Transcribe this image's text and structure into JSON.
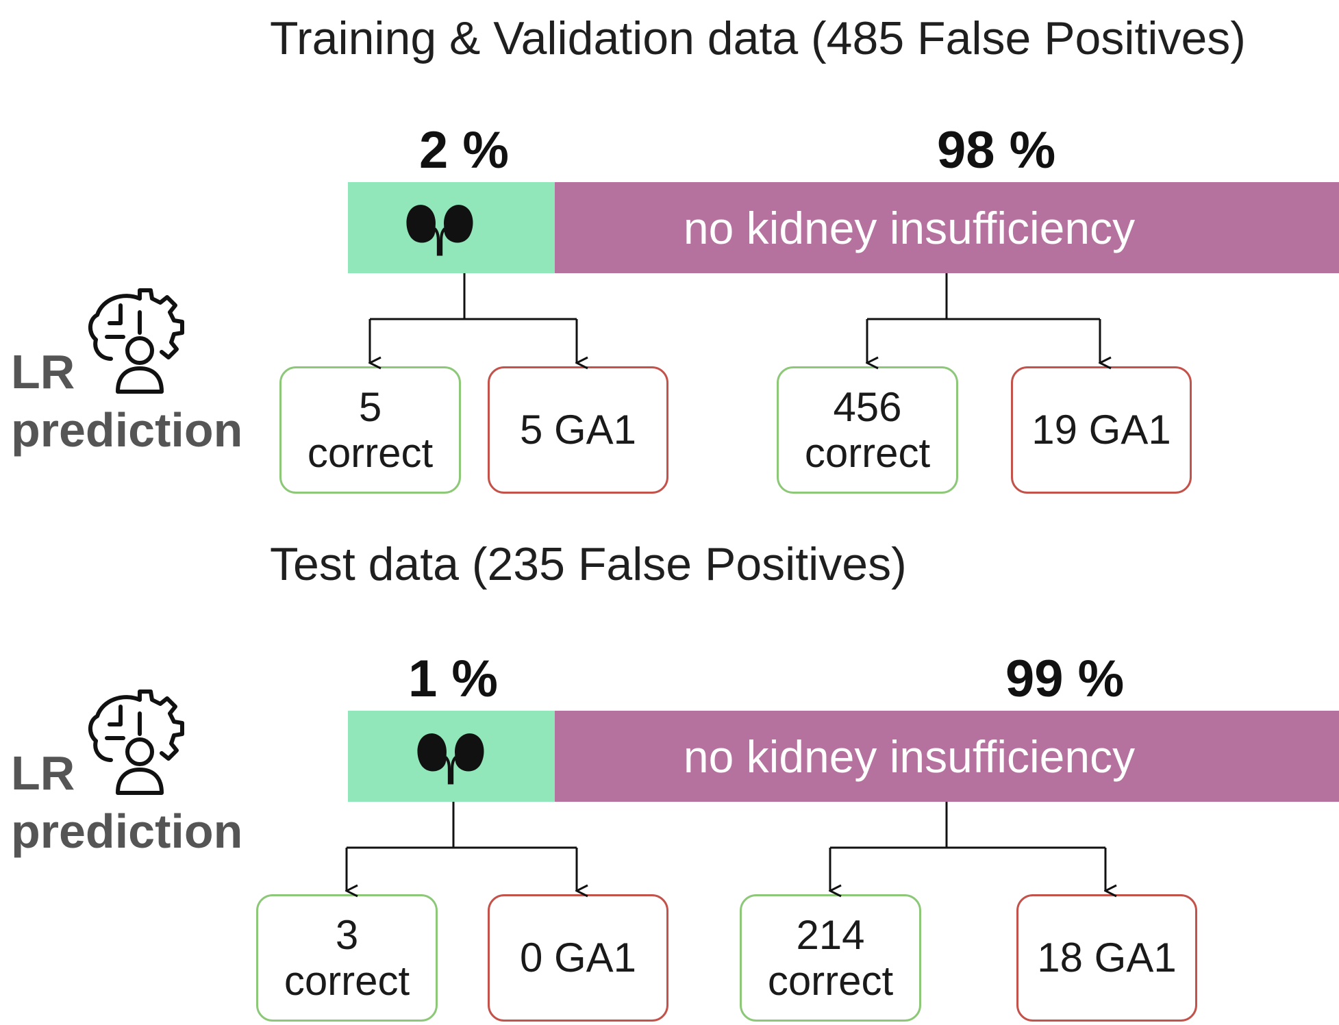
{
  "panels": [
    {
      "title": "Training & Validation data (485 False Positives)",
      "kidney_pct_label": "2 %",
      "no_kidney_pct_label": "98 %",
      "kidney_fraction": 0.02,
      "no_kidney_fraction": 0.98,
      "no_kidney_label": "no kidney insufficiency",
      "model_label_line1": "LR",
      "model_label_line2": "prediction",
      "kidney_branch": {
        "correct": {
          "count": "5",
          "label": "correct"
        },
        "ga1": "5 GA1"
      },
      "no_kidney_branch": {
        "correct": {
          "count": "456",
          "label": "correct"
        },
        "ga1": "19 GA1"
      }
    },
    {
      "title": "Test data (235 False Positives)",
      "kidney_pct_label": "1 %",
      "no_kidney_pct_label": "99 %",
      "kidney_fraction": 0.01,
      "no_kidney_fraction": 0.99,
      "no_kidney_label": "no kidney insufficiency",
      "model_label_line1": "LR",
      "model_label_line2": "prediction",
      "kidney_branch": {
        "correct": {
          "count": "3",
          "label": "correct"
        },
        "ga1": "0 GA1"
      },
      "no_kidney_branch": {
        "correct": {
          "count": "214",
          "label": "correct"
        },
        "ga1": "18 GA1"
      }
    }
  ],
  "colors": {
    "kidney_bar": "#91e7b9",
    "no_kidney_bar": "#b5729e",
    "correct_border": "#8cc878",
    "ga1_border": "#c2524a"
  },
  "icons": [
    "kidney-icon",
    "brain-gear-person-icon"
  ]
}
